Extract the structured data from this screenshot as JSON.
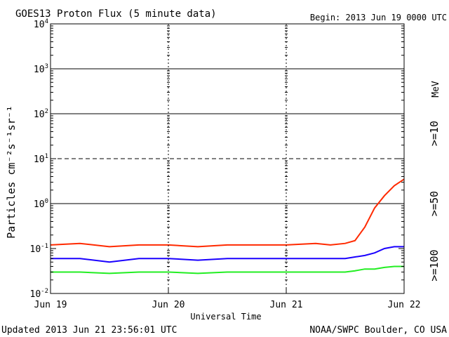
{
  "header": {
    "title": "GOES13 Proton Flux (5 minute data)",
    "begin": "Begin: 2013 Jun 19 0000 UTC"
  },
  "footer": {
    "updated": "Updated 2013 Jun 21 23:56:01 UTC",
    "credit": "NOAA/SWPC Boulder, CO USA"
  },
  "chart_data": {
    "type": "line",
    "title": "GOES13 Proton Flux (5 minute data)",
    "xlabel": "Universal Time",
    "ylabel": "Particles cm⁻²s⁻¹sr⁻¹",
    "y_scale": "log",
    "ylim": [
      0.01,
      10000
    ],
    "xlim": [
      "2013-06-19 00:00",
      "2013-06-22 00:00"
    ],
    "x_ticks": [
      "Jun 19",
      "Jun 20",
      "Jun 21",
      "Jun 22"
    ],
    "y_ticks": [
      {
        "base": "10",
        "exp": "-2"
      },
      {
        "base": "10",
        "exp": "-1"
      },
      {
        "base": "10",
        "exp": "0"
      },
      {
        "base": "10",
        "exp": "1"
      },
      {
        "base": "10",
        "exp": "2"
      },
      {
        "base": "10",
        "exp": "3"
      },
      {
        "base": "10",
        "exp": "4"
      }
    ],
    "threshold_lines": [
      {
        "value": 1000,
        "style": "solid"
      },
      {
        "value": 100,
        "style": "solid"
      },
      {
        "value": 10,
        "style": "dashed"
      },
      {
        "value": 1,
        "style": "solid"
      }
    ],
    "unit_label": "MeV",
    "grid": false,
    "series": [
      {
        "name": ">=10",
        "color": "#ff2a00",
        "x": [
          "2013-06-19 00:00",
          "2013-06-19 06:00",
          "2013-06-19 12:00",
          "2013-06-19 18:00",
          "2013-06-20 00:00",
          "2013-06-20 06:00",
          "2013-06-20 12:00",
          "2013-06-20 18:00",
          "2013-06-21 00:00",
          "2013-06-21 06:00",
          "2013-06-21 09:00",
          "2013-06-21 12:00",
          "2013-06-21 14:00",
          "2013-06-21 16:00",
          "2013-06-21 18:00",
          "2013-06-21 20:00",
          "2013-06-21 22:00",
          "2013-06-22 00:00"
        ],
        "values": [
          0.12,
          0.13,
          0.11,
          0.12,
          0.12,
          0.11,
          0.12,
          0.12,
          0.12,
          0.13,
          0.12,
          0.13,
          0.15,
          0.3,
          0.8,
          1.5,
          2.5,
          3.5
        ]
      },
      {
        "name": ">=50",
        "color": "#1a00ff",
        "x": [
          "2013-06-19 00:00",
          "2013-06-19 06:00",
          "2013-06-19 12:00",
          "2013-06-19 18:00",
          "2013-06-20 00:00",
          "2013-06-20 06:00",
          "2013-06-20 12:00",
          "2013-06-20 18:00",
          "2013-06-21 00:00",
          "2013-06-21 06:00",
          "2013-06-21 09:00",
          "2013-06-21 12:00",
          "2013-06-21 14:00",
          "2013-06-21 16:00",
          "2013-06-21 18:00",
          "2013-06-21 20:00",
          "2013-06-21 22:00",
          "2013-06-22 00:00"
        ],
        "values": [
          0.06,
          0.06,
          0.05,
          0.06,
          0.06,
          0.055,
          0.06,
          0.06,
          0.06,
          0.06,
          0.06,
          0.06,
          0.065,
          0.07,
          0.08,
          0.1,
          0.11,
          0.11
        ]
      },
      {
        "name": ">=100",
        "color": "#22ee22",
        "x": [
          "2013-06-19 00:00",
          "2013-06-19 06:00",
          "2013-06-19 12:00",
          "2013-06-19 18:00",
          "2013-06-20 00:00",
          "2013-06-20 06:00",
          "2013-06-20 12:00",
          "2013-06-20 18:00",
          "2013-06-21 00:00",
          "2013-06-21 06:00",
          "2013-06-21 09:00",
          "2013-06-21 12:00",
          "2013-06-21 14:00",
          "2013-06-21 16:00",
          "2013-06-21 18:00",
          "2013-06-21 20:00",
          "2013-06-21 22:00",
          "2013-06-22 00:00"
        ],
        "values": [
          0.03,
          0.03,
          0.028,
          0.03,
          0.03,
          0.028,
          0.03,
          0.03,
          0.03,
          0.03,
          0.03,
          0.03,
          0.032,
          0.035,
          0.035,
          0.038,
          0.04,
          0.04
        ]
      }
    ]
  }
}
